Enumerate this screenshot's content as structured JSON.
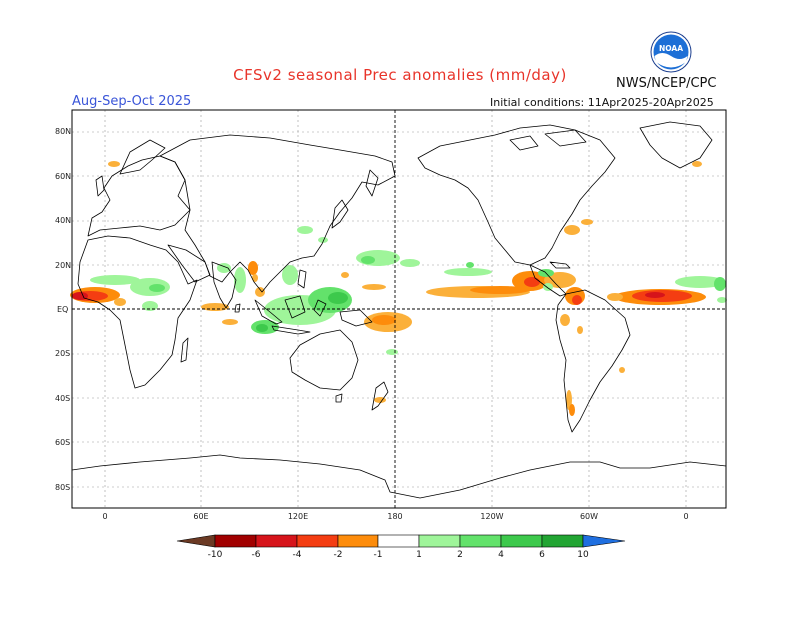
{
  "header": {
    "title": "CFSv2 seasonal Prec anomalies (mm/day)",
    "agency": "NWS/NCEP/CPC",
    "period": "Aug-Sep-Oct 2025",
    "initial_conditions": "Initial conditions: 11Apr2025-20Apr2025",
    "logo_text": "NOAA"
  },
  "axes": {
    "lat_labels": [
      "80N",
      "60N",
      "40N",
      "20N",
      "EQ",
      "20S",
      "40S",
      "60S",
      "80S"
    ],
    "lon_labels": [
      "0",
      "60E",
      "120E",
      "180",
      "120W",
      "60W",
      "0"
    ]
  },
  "colorbar": {
    "labels": [
      "-10",
      "-6",
      "-4",
      "-2",
      "-1",
      "1",
      "2",
      "4",
      "6",
      "10"
    ],
    "colors": {
      "dry_extreme": "#6b3a24",
      "dry_10": "#a10000",
      "dry_6": "#d6141b",
      "dry_4": "#f43d12",
      "dry_2": "#fd8c0b",
      "dry_1": "#fbb03a",
      "neutral": "#ffffff",
      "wet_1": "#9ff59a",
      "wet_2": "#63e26b",
      "wet_4": "#3dc94c",
      "wet_6": "#22a533",
      "wet_10": "#17901e",
      "wet_extreme": "#1f6fe0"
    }
  }
}
